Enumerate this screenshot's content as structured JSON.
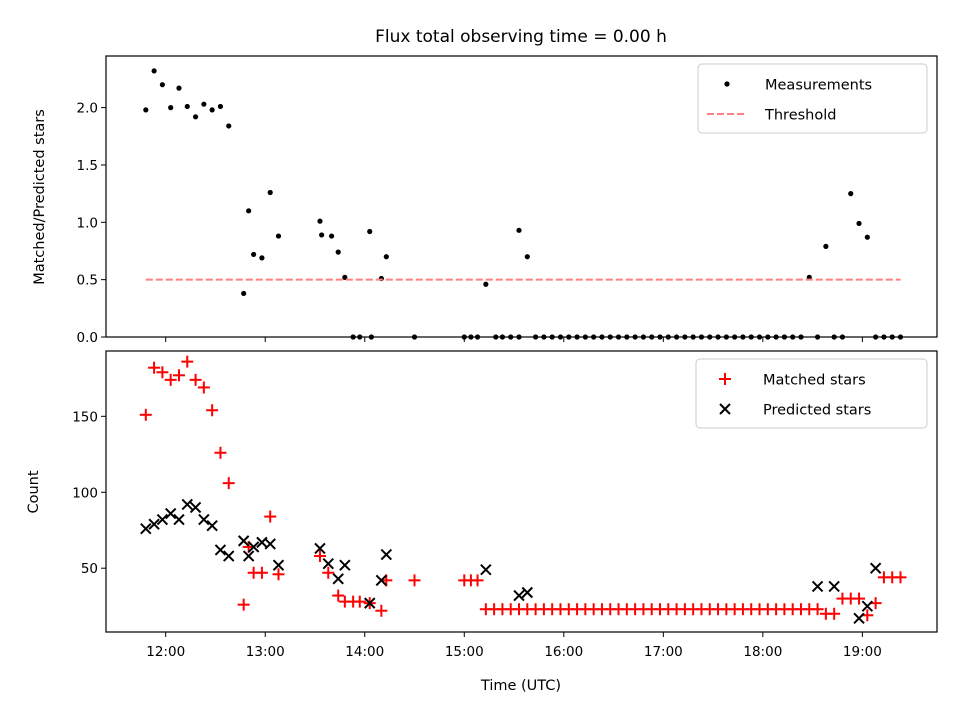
{
  "chart_data": [
    {
      "type": "scatter",
      "title": "Flux total observing time = 0.00 h",
      "xlabel": "",
      "ylabel": "Matched/Predicted stars",
      "xlim": [
        "11:24",
        "19:45"
      ],
      "ylim": [
        0,
        2.45
      ],
      "xticks": [
        "12:00",
        "13:00",
        "14:00",
        "15:00",
        "16:00",
        "17:00",
        "18:00",
        "19:00"
      ],
      "yticks": [
        "0.0",
        "0.5",
        "1.0",
        "1.5",
        "2.0"
      ],
      "legend": {
        "position": "top-right",
        "entries": [
          "Measurements",
          "Threshold"
        ]
      },
      "series": [
        {
          "name": "Measurements",
          "color": "#000000",
          "marker": "dot",
          "x": [
            "11:48",
            "11:53",
            "11:58",
            "12:03",
            "12:08",
            "12:13",
            "12:18",
            "12:23",
            "12:28",
            "12:33",
            "12:38",
            "12:47",
            "12:50",
            "12:53",
            "12:58",
            "13:03",
            "13:08",
            "13:33",
            "13:34",
            "13:40",
            "13:44",
            "13:48",
            "13:53",
            "13:57",
            "14:03",
            "14:04",
            "14:10",
            "14:13",
            "14:30",
            "15:00",
            "15:04",
            "15:08",
            "15:13",
            "15:19",
            "15:23",
            "15:28",
            "15:33",
            "15:33",
            "15:38",
            "15:43",
            "15:48",
            "15:53",
            "15:58",
            "16:03",
            "16:08",
            "16:13",
            "16:18",
            "16:23",
            "16:28",
            "16:33",
            "16:38",
            "16:43",
            "16:48",
            "16:53",
            "16:58",
            "17:03",
            "17:08",
            "17:13",
            "17:18",
            "17:23",
            "17:28",
            "17:33",
            "17:38",
            "17:43",
            "17:48",
            "17:53",
            "17:58",
            "18:03",
            "18:08",
            "18:13",
            "18:18",
            "18:23",
            "18:28",
            "18:33",
            "18:38",
            "18:43",
            "18:48",
            "18:53",
            "18:58",
            "19:03",
            "19:08",
            "19:13",
            "19:18",
            "19:23"
          ],
          "y": [
            1.98,
            2.32,
            2.2,
            2.0,
            2.17,
            2.01,
            1.92,
            2.03,
            1.98,
            2.01,
            1.84,
            0.38,
            1.1,
            0.72,
            0.69,
            1.26,
            0.88,
            1.01,
            0.89,
            0.88,
            0.74,
            0.52,
            0.0,
            0.0,
            0.92,
            0.0,
            0.51,
            0.7,
            0.0,
            0.0,
            0.0,
            0.0,
            0.46,
            0.0,
            0.0,
            0.0,
            0.93,
            0.0,
            0.7,
            0.0,
            0.0,
            0.0,
            0.0,
            0.0,
            0.0,
            0.0,
            0.0,
            0.0,
            0.0,
            0.0,
            0.0,
            0.0,
            0.0,
            0.0,
            0.0,
            0.0,
            0.0,
            0.0,
            0.0,
            0.0,
            0.0,
            0.0,
            0.0,
            0.0,
            0.0,
            0.0,
            0.0,
            0.0,
            0.0,
            0.0,
            0.0,
            0.0,
            0.52,
            0.0,
            0.79,
            0.0,
            0.0,
            1.25,
            0.99,
            0.87,
            0.0,
            0.0,
            0.0,
            0.0
          ]
        },
        {
          "name": "Threshold",
          "color": "#ff8080",
          "style": "dashed",
          "x": [
            "11:48",
            "19:23"
          ],
          "y": [
            0.5,
            0.5
          ]
        }
      ]
    },
    {
      "type": "scatter",
      "title": "",
      "xlabel": "Time (UTC)",
      "ylabel": "Count",
      "xlim": [
        "11:24",
        "19:45"
      ],
      "ylim": [
        8,
        193
      ],
      "xticks": [
        "12:00",
        "13:00",
        "14:00",
        "15:00",
        "16:00",
        "17:00",
        "18:00",
        "19:00"
      ],
      "yticks": [
        "50",
        "100",
        "150"
      ],
      "legend": {
        "position": "top-right",
        "entries": [
          "Matched stars",
          "Predicted stars"
        ]
      },
      "series": [
        {
          "name": "Matched stars",
          "color": "#ff0000",
          "marker": "plus",
          "x": [
            "11:48",
            "11:53",
            "11:58",
            "12:03",
            "12:08",
            "12:13",
            "12:18",
            "12:23",
            "12:28",
            "12:33",
            "12:38",
            "12:47",
            "12:50",
            "12:53",
            "12:58",
            "13:03",
            "13:08",
            "13:33",
            "13:38",
            "13:44",
            "13:48",
            "13:53",
            "13:57",
            "14:03",
            "14:10",
            "14:13",
            "14:30",
            "15:00",
            "15:04",
            "15:08",
            "15:13",
            "15:18",
            "15:23",
            "15:28",
            "15:33",
            "15:38",
            "15:43",
            "15:48",
            "15:53",
            "15:58",
            "16:03",
            "16:08",
            "16:13",
            "16:18",
            "16:23",
            "16:28",
            "16:33",
            "16:38",
            "16:43",
            "16:48",
            "16:53",
            "16:58",
            "17:03",
            "17:08",
            "17:13",
            "17:18",
            "17:23",
            "17:28",
            "17:33",
            "17:38",
            "17:43",
            "17:48",
            "17:53",
            "17:58",
            "18:03",
            "18:08",
            "18:13",
            "18:18",
            "18:23",
            "18:28",
            "18:33",
            "18:38",
            "18:43",
            "18:48",
            "18:53",
            "18:58",
            "19:03",
            "19:08",
            "19:13",
            "19:18",
            "19:23"
          ],
          "y": [
            151,
            182,
            179,
            174,
            177,
            186,
            174,
            169,
            154,
            126,
            106,
            26,
            64,
            47,
            47,
            84,
            46,
            58,
            47,
            32,
            28,
            28,
            28,
            27,
            22,
            42,
            42,
            42,
            42,
            42,
            23,
            23,
            23,
            23,
            23,
            23,
            23,
            23,
            23,
            23,
            23,
            23,
            23,
            23,
            23,
            23,
            23,
            23,
            23,
            23,
            23,
            23,
            23,
            23,
            23,
            23,
            23,
            23,
            23,
            23,
            23,
            23,
            23,
            23,
            23,
            23,
            23,
            23,
            23,
            23,
            23,
            20,
            20,
            30,
            30,
            30,
            19,
            27,
            44,
            44,
            44
          ]
        },
        {
          "name": "Predicted stars",
          "color": "#000000",
          "marker": "x",
          "x": [
            "11:48",
            "11:53",
            "11:58",
            "12:03",
            "12:08",
            "12:13",
            "12:18",
            "12:23",
            "12:28",
            "12:33",
            "12:38",
            "12:47",
            "12:50",
            "12:53",
            "12:58",
            "13:03",
            "13:08",
            "13:33",
            "13:38",
            "13:44",
            "13:48",
            "14:03",
            "14:10",
            "14:13",
            "15:13",
            "15:33",
            "15:38",
            "18:33",
            "18:43",
            "18:58",
            "19:03",
            "19:08"
          ],
          "y": [
            76,
            79,
            82,
            86,
            82,
            92,
            90,
            82,
            78,
            62,
            58,
            68,
            58,
            64,
            67,
            66,
            52,
            63,
            53,
            43,
            52,
            27,
            42,
            59,
            49,
            32,
            34,
            38,
            38,
            17,
            25,
            50
          ]
        }
      ]
    }
  ]
}
